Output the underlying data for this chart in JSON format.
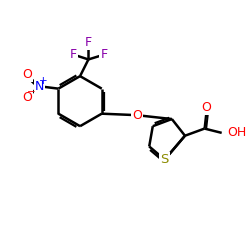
{
  "bg_color": "#ffffff",
  "bond_color": "#000000",
  "bond_lw": 1.8,
  "atom_colors": {
    "O": "#ff0000",
    "N": "#0000ff",
    "S": "#8b8b00",
    "F": "#8800aa",
    "C": "#000000",
    "H": "#000000"
  },
  "font_size": 8.5,
  "fig_size": [
    2.5,
    2.5
  ],
  "dpi": 100,
  "xlim": [
    0,
    10
  ],
  "ylim": [
    0,
    10
  ]
}
